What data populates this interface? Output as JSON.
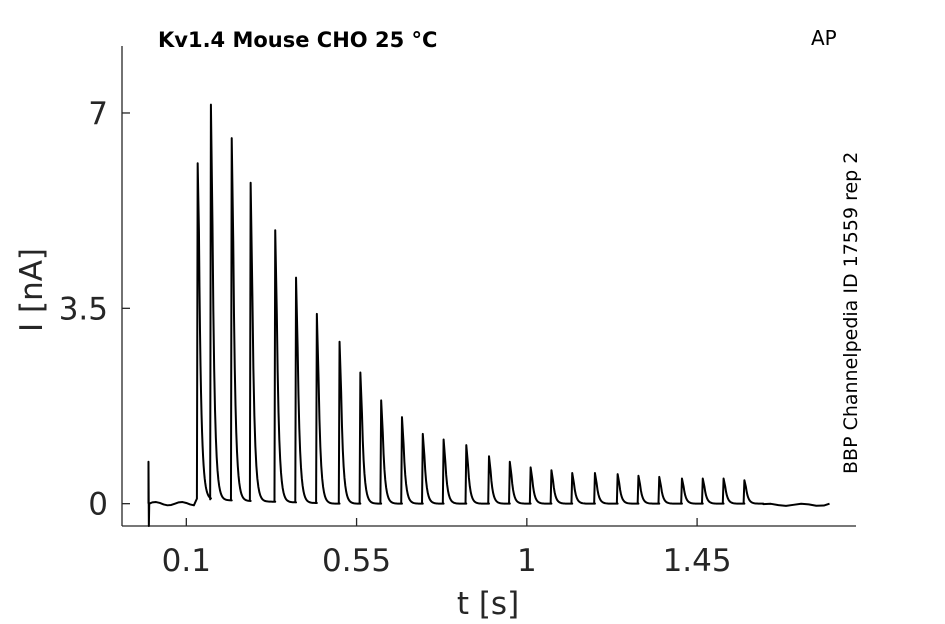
{
  "chart_data": {
    "type": "line",
    "title": "Kv1.4  Mouse  CHO  25 °C",
    "corner_label": "AP",
    "side_label": "BBP Channelpedia ID 17559 rep 2",
    "xlabel": "t [s]",
    "ylabel": "I [nA]",
    "xlim": [
      -0.07,
      1.87
    ],
    "ylim": [
      -0.4,
      8.2
    ],
    "xticks": [
      0.1,
      0.55,
      1,
      1.45
    ],
    "xtick_labels": [
      "0.1",
      "0.55",
      "1",
      "1.45"
    ],
    "yticks": [
      0,
      3.5,
      7
    ],
    "ytick_labels": [
      "0",
      "3.5",
      "7"
    ],
    "grid": false,
    "line_color": "#000000",
    "series": [
      {
        "baseline": 0.0,
        "trace_start": 0.0,
        "trace_end": 1.8,
        "stimulus_artifact": {
          "t": 0.0,
          "peak": 0.75,
          "trough": -0.4
        },
        "spike_times": [
          0.13,
          0.165,
          0.22,
          0.27,
          0.335,
          0.39,
          0.445,
          0.505,
          0.56,
          0.615,
          0.67,
          0.725,
          0.78,
          0.84,
          0.9,
          0.955,
          1.01,
          1.065,
          1.12,
          1.18,
          1.24,
          1.295,
          1.35,
          1.41,
          1.465,
          1.52,
          1.575
        ],
        "spike_peaks": [
          6.1,
          7.15,
          6.55,
          5.75,
          4.9,
          4.05,
          3.4,
          2.9,
          2.35,
          1.85,
          1.55,
          1.25,
          1.15,
          1.05,
          0.85,
          0.75,
          0.65,
          0.6,
          0.55,
          0.55,
          0.53,
          0.5,
          0.48,
          0.45,
          0.45,
          0.45,
          0.42
        ]
      }
    ]
  }
}
